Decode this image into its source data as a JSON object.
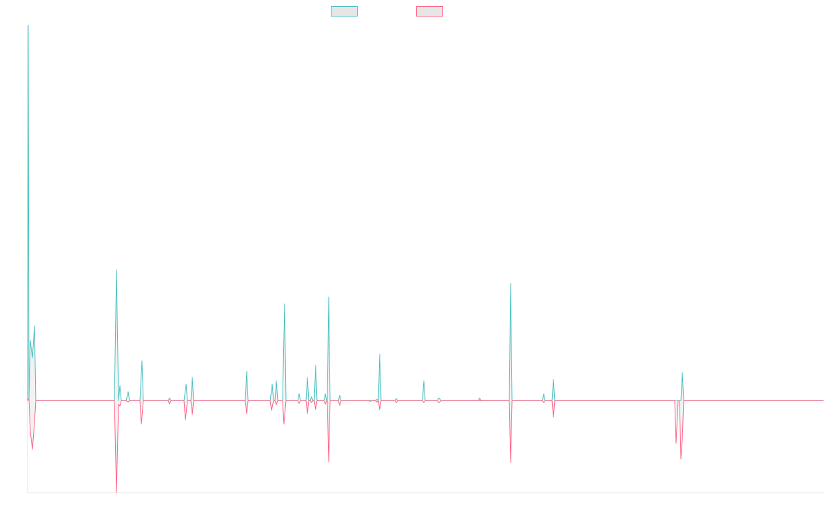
{
  "chart_data": {
    "type": "line",
    "title": "",
    "xlabel": "",
    "ylabel": "",
    "ylim": [
      -134,
      548
    ],
    "xlim": [
      0,
      1155
    ],
    "grid": false,
    "legend_position": "top",
    "baseline": 0,
    "series": [
      {
        "color": "#4bc0c0",
        "fill": "#e6e6e6",
        "points": [
          [
            0,
            0
          ],
          [
            1,
            547
          ],
          [
            2,
            0
          ],
          [
            4,
            88
          ],
          [
            7,
            62
          ],
          [
            10,
            109
          ],
          [
            12,
            0
          ],
          [
            126,
            0
          ],
          [
            129,
            191
          ],
          [
            132,
            0
          ],
          [
            134,
            22
          ],
          [
            136,
            0
          ],
          [
            143,
            0
          ],
          [
            146,
            13
          ],
          [
            148,
            0
          ],
          [
            163,
            0
          ],
          [
            166,
            58
          ],
          [
            168,
            0
          ],
          [
            204,
            0
          ],
          [
            206,
            4
          ],
          [
            208,
            0
          ],
          [
            227,
            0
          ],
          [
            230,
            24
          ],
          [
            232,
            0
          ],
          [
            237,
            0
          ],
          [
            239,
            34
          ],
          [
            241,
            0
          ],
          [
            316,
            0
          ],
          [
            318,
            43
          ],
          [
            320,
            0
          ],
          [
            352,
            0
          ],
          [
            355,
            24
          ],
          [
            357,
            0
          ],
          [
            359,
            0
          ],
          [
            361,
            29
          ],
          [
            363,
            0
          ],
          [
            370,
            0
          ],
          [
            373,
            141
          ],
          [
            375,
            0
          ],
          [
            392,
            0
          ],
          [
            394,
            10
          ],
          [
            396,
            0
          ],
          [
            404,
            0
          ],
          [
            406,
            34
          ],
          [
            408,
            0
          ],
          [
            410,
            0
          ],
          [
            412,
            6
          ],
          [
            414,
            0
          ],
          [
            416,
            0
          ],
          [
            418,
            52
          ],
          [
            420,
            0
          ],
          [
            430,
            0
          ],
          [
            432,
            10
          ],
          [
            434,
            0
          ],
          [
            435,
            0
          ],
          [
            437,
            151
          ],
          [
            439,
            0
          ],
          [
            451,
            0
          ],
          [
            453,
            8
          ],
          [
            455,
            0
          ],
          [
            495,
            0
          ],
          [
            497,
            1
          ],
          [
            499,
            0
          ],
          [
            505,
            0
          ],
          [
            507,
            2
          ],
          [
            509,
            0
          ],
          [
            511,
            68
          ],
          [
            513,
            0
          ],
          [
            533,
            0
          ],
          [
            535,
            3
          ],
          [
            537,
            0
          ],
          [
            573,
            0
          ],
          [
            575,
            29
          ],
          [
            577,
            0
          ],
          [
            594,
            0
          ],
          [
            597,
            4
          ],
          [
            600,
            0
          ],
          [
            654,
            0
          ],
          [
            656,
            4
          ],
          [
            658,
            0
          ],
          [
            699,
            0
          ],
          [
            701,
            171
          ],
          [
            703,
            0
          ],
          [
            747,
            0
          ],
          [
            749,
            10
          ],
          [
            751,
            0
          ],
          [
            761,
            0
          ],
          [
            763,
            31
          ],
          [
            765,
            0
          ],
          [
            948,
            0
          ],
          [
            950,
            41
          ],
          [
            952,
            0
          ],
          [
            1155,
            0
          ]
        ]
      },
      {
        "color": "#ff6384",
        "fill": "#e6e6e6",
        "points": [
          [
            0,
            0
          ],
          [
            2,
            3
          ],
          [
            4,
            -45
          ],
          [
            7,
            -71
          ],
          [
            10,
            -33
          ],
          [
            12,
            0
          ],
          [
            126,
            0
          ],
          [
            129,
            -134
          ],
          [
            132,
            -5
          ],
          [
            134,
            -8
          ],
          [
            136,
            0
          ],
          [
            143,
            0
          ],
          [
            146,
            -2
          ],
          [
            148,
            0
          ],
          [
            163,
            0
          ],
          [
            165,
            -34
          ],
          [
            168,
            0
          ],
          [
            204,
            0
          ],
          [
            206,
            -5
          ],
          [
            208,
            0
          ],
          [
            227,
            0
          ],
          [
            229,
            -28
          ],
          [
            232,
            0
          ],
          [
            237,
            0
          ],
          [
            239,
            -20
          ],
          [
            241,
            0
          ],
          [
            316,
            0
          ],
          [
            318,
            -19
          ],
          [
            320,
            0
          ],
          [
            352,
            0
          ],
          [
            354,
            -14
          ],
          [
            357,
            0
          ],
          [
            359,
            0
          ],
          [
            361,
            -6
          ],
          [
            363,
            0
          ],
          [
            370,
            0
          ],
          [
            372,
            -34
          ],
          [
            375,
            0
          ],
          [
            392,
            0
          ],
          [
            394,
            -4
          ],
          [
            396,
            0
          ],
          [
            404,
            0
          ],
          [
            406,
            -19
          ],
          [
            408,
            0
          ],
          [
            410,
            0
          ],
          [
            412,
            -3
          ],
          [
            414,
            0
          ],
          [
            416,
            0
          ],
          [
            418,
            -13
          ],
          [
            420,
            0
          ],
          [
            430,
            0
          ],
          [
            432,
            -5
          ],
          [
            434,
            0
          ],
          [
            435,
            0
          ],
          [
            437,
            -89
          ],
          [
            439,
            0
          ],
          [
            451,
            0
          ],
          [
            453,
            -7
          ],
          [
            455,
            0
          ],
          [
            495,
            0
          ],
          [
            497,
            -1
          ],
          [
            499,
            0
          ],
          [
            505,
            0
          ],
          [
            507,
            -2
          ],
          [
            509,
            0
          ],
          [
            511,
            -13
          ],
          [
            513,
            0
          ],
          [
            533,
            0
          ],
          [
            535,
            -3
          ],
          [
            537,
            0
          ],
          [
            573,
            0
          ],
          [
            575,
            -3
          ],
          [
            577,
            0
          ],
          [
            594,
            0
          ],
          [
            597,
            -3
          ],
          [
            600,
            0
          ],
          [
            699,
            0
          ],
          [
            701,
            -90
          ],
          [
            703,
            0
          ],
          [
            747,
            0
          ],
          [
            749,
            -3
          ],
          [
            751,
            0
          ],
          [
            761,
            0
          ],
          [
            763,
            -24
          ],
          [
            765,
            0
          ],
          [
            939,
            0
          ],
          [
            941,
            -62
          ],
          [
            944,
            0
          ],
          [
            946,
            0
          ],
          [
            948,
            -85
          ],
          [
            950,
            -58
          ],
          [
            952,
            0
          ],
          [
            1155,
            0
          ]
        ]
      }
    ]
  }
}
